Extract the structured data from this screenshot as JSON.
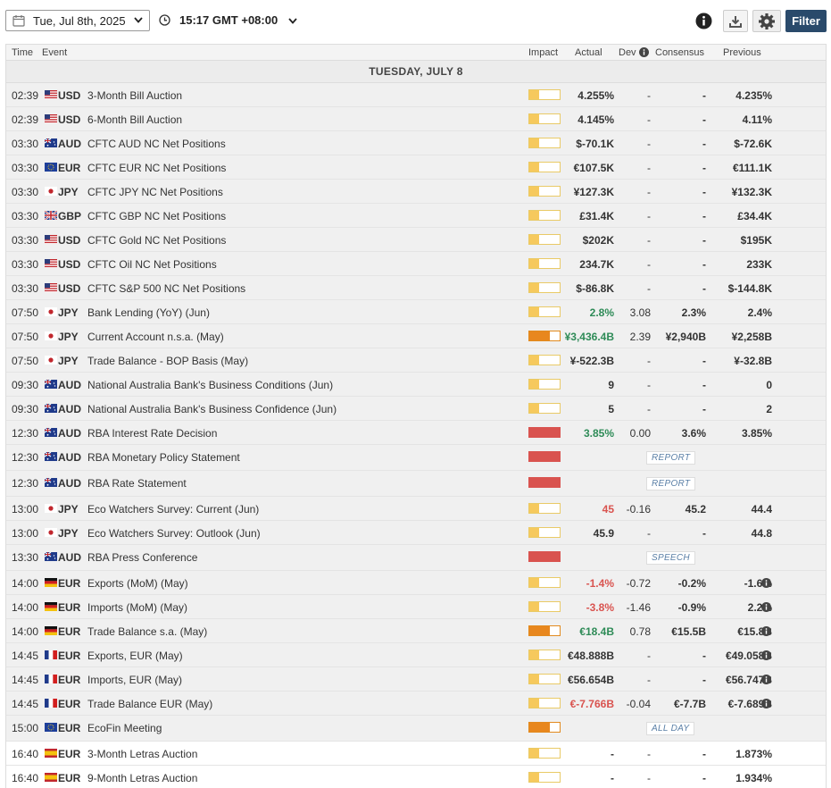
{
  "toolbar": {
    "date": "Tue, Jul 8th, 2025",
    "time": "15:17 GMT +08:00",
    "filter_label": "Filter"
  },
  "columns": {
    "time": "Time",
    "event": "Event",
    "impact": "Impact",
    "actual": "Actual",
    "dev": "Dev",
    "consensus": "Consensus",
    "previous": "Previous"
  },
  "day_header": "TUESDAY, JULY 8",
  "colors": {
    "filter_bg": "#2a4a6b",
    "impact_low": "#f6c95d",
    "impact_medium": "#e8871e",
    "impact_high": "#d9534f",
    "positive": "#2e8b57",
    "negative": "#d9534f"
  },
  "events": [
    {
      "time": "02:39",
      "flag": "us",
      "currency": "USD",
      "event": "3-Month Bill Auction",
      "impact": "low",
      "actual": "4.255%",
      "dev": "-",
      "consensus": "-",
      "previous": "4.235%"
    },
    {
      "time": "02:39",
      "flag": "us",
      "currency": "USD",
      "event": "6-Month Bill Auction",
      "impact": "low",
      "actual": "4.145%",
      "dev": "-",
      "consensus": "-",
      "previous": "4.11%"
    },
    {
      "time": "03:30",
      "flag": "au",
      "currency": "AUD",
      "event": "CFTC AUD NC Net Positions",
      "impact": "low",
      "actual": "$-70.1K",
      "dev": "-",
      "consensus": "-",
      "previous": "$-72.6K"
    },
    {
      "time": "03:30",
      "flag": "eu",
      "currency": "EUR",
      "event": "CFTC EUR NC Net Positions",
      "impact": "low",
      "actual": "€107.5K",
      "dev": "-",
      "consensus": "-",
      "previous": "€111.1K"
    },
    {
      "time": "03:30",
      "flag": "jp",
      "currency": "JPY",
      "event": "CFTC JPY NC Net Positions",
      "impact": "low",
      "actual": "¥127.3K",
      "dev": "-",
      "consensus": "-",
      "previous": "¥132.3K"
    },
    {
      "time": "03:30",
      "flag": "gb",
      "currency": "GBP",
      "event": "CFTC GBP NC Net Positions",
      "impact": "low",
      "actual": "£31.4K",
      "dev": "-",
      "consensus": "-",
      "previous": "£34.4K"
    },
    {
      "time": "03:30",
      "flag": "us",
      "currency": "USD",
      "event": "CFTC Gold NC Net Positions",
      "impact": "low",
      "actual": "$202K",
      "dev": "-",
      "consensus": "-",
      "previous": "$195K"
    },
    {
      "time": "03:30",
      "flag": "us",
      "currency": "USD",
      "event": "CFTC Oil NC Net Positions",
      "impact": "low",
      "actual": "234.7K",
      "dev": "-",
      "consensus": "-",
      "previous": "233K"
    },
    {
      "time": "03:30",
      "flag": "us",
      "currency": "USD",
      "event": "CFTC S&P 500 NC Net Positions",
      "impact": "low",
      "actual": "$-86.8K",
      "dev": "-",
      "consensus": "-",
      "previous": "$-144.8K"
    },
    {
      "time": "07:50",
      "flag": "jp",
      "currency": "JPY",
      "event": "Bank Lending (YoY) (Jun)",
      "impact": "low",
      "actual": "2.8%",
      "actual_tone": "green",
      "dev": "3.08",
      "consensus": "2.3%",
      "previous": "2.4%"
    },
    {
      "time": "07:50",
      "flag": "jp",
      "currency": "JPY",
      "event": "Current Account n.s.a. (May)",
      "impact": "medium",
      "actual": "¥3,436.4B",
      "actual_tone": "green",
      "dev": "2.39",
      "consensus": "¥2,940B",
      "previous": "¥2,258B"
    },
    {
      "time": "07:50",
      "flag": "jp",
      "currency": "JPY",
      "event": "Trade Balance - BOP Basis (May)",
      "impact": "low",
      "actual": "¥-522.3B",
      "dev": "-",
      "consensus": "-",
      "previous": "¥-32.8B"
    },
    {
      "time": "09:30",
      "flag": "au",
      "currency": "AUD",
      "event": "National Australia Bank's Business Conditions (Jun)",
      "impact": "low",
      "actual": "9",
      "dev": "-",
      "consensus": "-",
      "previous": "0"
    },
    {
      "time": "09:30",
      "flag": "au",
      "currency": "AUD",
      "event": "National Australia Bank's Business Confidence (Jun)",
      "impact": "low",
      "actual": "5",
      "dev": "-",
      "consensus": "-",
      "previous": "2"
    },
    {
      "time": "12:30",
      "flag": "au",
      "currency": "AUD",
      "event": "RBA Interest Rate Decision",
      "impact": "high",
      "actual": "3.85%",
      "actual_tone": "green",
      "dev": "0.00",
      "consensus": "3.6%",
      "previous": "3.85%"
    },
    {
      "time": "12:30",
      "flag": "au",
      "currency": "AUD",
      "event": "RBA Monetary Policy Statement",
      "impact": "high",
      "tag": "REPORT"
    },
    {
      "time": "12:30",
      "flag": "au",
      "currency": "AUD",
      "event": "RBA Rate Statement",
      "impact": "high",
      "tag": "REPORT"
    },
    {
      "time": "13:00",
      "flag": "jp",
      "currency": "JPY",
      "event": "Eco Watchers Survey: Current (Jun)",
      "impact": "low",
      "actual": "45",
      "actual_tone": "red",
      "dev": "-0.16",
      "consensus": "45.2",
      "previous": "44.4"
    },
    {
      "time": "13:00",
      "flag": "jp",
      "currency": "JPY",
      "event": "Eco Watchers Survey: Outlook (Jun)",
      "impact": "low",
      "actual": "45.9",
      "dev": "-",
      "consensus": "-",
      "previous": "44.8"
    },
    {
      "time": "13:30",
      "flag": "au",
      "currency": "AUD",
      "event": "RBA Press Conference",
      "impact": "high",
      "tag": "SPEECH"
    },
    {
      "time": "14:00",
      "flag": "de",
      "currency": "EUR",
      "event": "Exports (MoM) (May)",
      "impact": "low",
      "actual": "-1.4%",
      "actual_tone": "red",
      "dev": "-0.72",
      "consensus": "-0.2%",
      "previous": "-1.6%",
      "info": true
    },
    {
      "time": "14:00",
      "flag": "de",
      "currency": "EUR",
      "event": "Imports (MoM) (May)",
      "impact": "low",
      "actual": "-3.8%",
      "actual_tone": "red",
      "dev": "-1.46",
      "consensus": "-0.9%",
      "previous": "2.2%",
      "info": true
    },
    {
      "time": "14:00",
      "flag": "de",
      "currency": "EUR",
      "event": "Trade Balance s.a. (May)",
      "impact": "medium",
      "actual": "€18.4B",
      "actual_tone": "green",
      "dev": "0.78",
      "consensus": "€15.5B",
      "previous": "€15.8B",
      "info": true
    },
    {
      "time": "14:45",
      "flag": "fr",
      "currency": "EUR",
      "event": "Exports, EUR (May)",
      "impact": "low",
      "actual": "€48.888B",
      "dev": "-",
      "consensus": "-",
      "previous": "€49.058B",
      "info": true
    },
    {
      "time": "14:45",
      "flag": "fr",
      "currency": "EUR",
      "event": "Imports, EUR (May)",
      "impact": "low",
      "actual": "€56.654B",
      "dev": "-",
      "consensus": "-",
      "previous": "€56.747B",
      "info": true
    },
    {
      "time": "14:45",
      "flag": "fr",
      "currency": "EUR",
      "event": "Trade Balance EUR (May)",
      "impact": "low",
      "actual": "€-7.766B",
      "actual_tone": "red",
      "dev": "-0.04",
      "consensus": "€-7.7B",
      "previous": "€-7.689B",
      "info": true
    },
    {
      "time": "15:00",
      "flag": "eu",
      "currency": "EUR",
      "event": "EcoFin Meeting",
      "impact": "medium",
      "tag": "ALL DAY"
    },
    {
      "time": "16:40",
      "flag": "es",
      "currency": "EUR",
      "event": "3-Month Letras Auction",
      "impact": "low",
      "actual": "-",
      "dev": "-",
      "consensus": "-",
      "previous": "1.873%",
      "upcoming": true
    },
    {
      "time": "16:40",
      "flag": "es",
      "currency": "EUR",
      "event": "9-Month Letras Auction",
      "impact": "low",
      "actual": "-",
      "dev": "-",
      "consensus": "-",
      "previous": "1.934%",
      "upcoming": true
    }
  ]
}
